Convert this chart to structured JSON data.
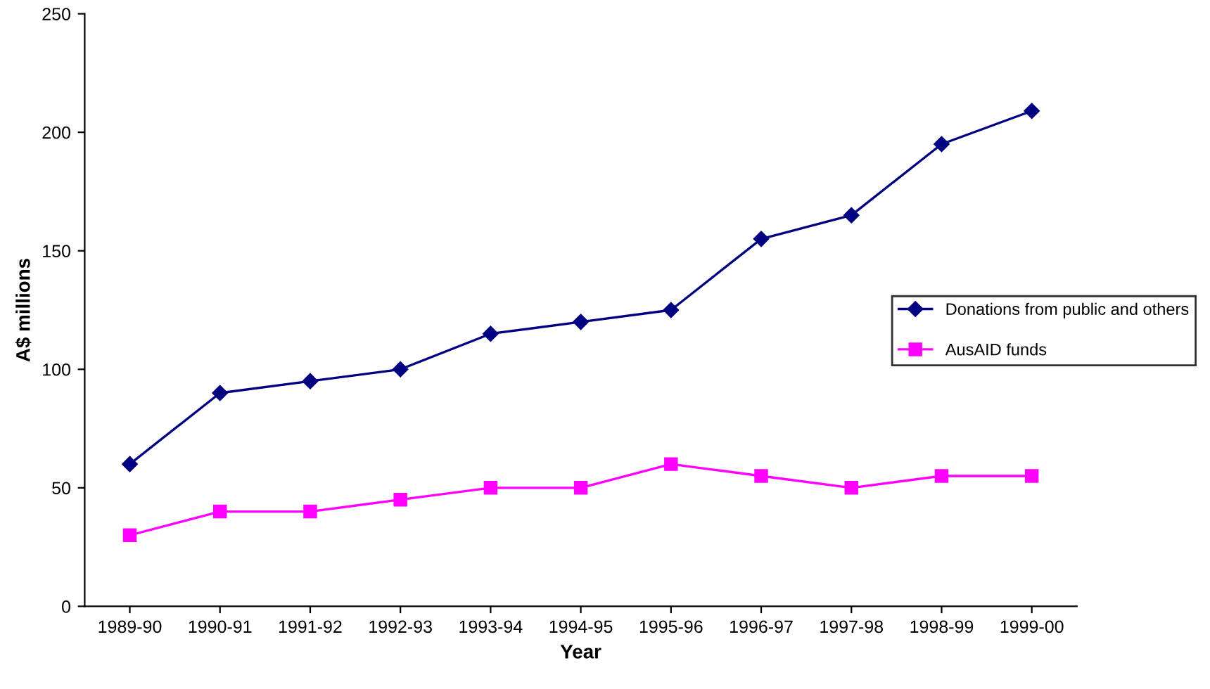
{
  "chart_data": {
    "type": "line",
    "xlabel": "Year",
    "ylabel": "A$ millions",
    "categories": [
      "1989-90",
      "1990-91",
      "1991-92",
      "1992-93",
      "1993-94",
      "1994-95",
      "1995-96",
      "1996-97",
      "1997-98",
      "1998-99",
      "1999-00"
    ],
    "series": [
      {
        "name": "Donations from public and others",
        "color": "#000080",
        "marker": "diamond",
        "values": [
          60,
          90,
          95,
          100,
          115,
          120,
          125,
          155,
          165,
          195,
          209
        ]
      },
      {
        "name": "AusAID funds",
        "color": "#ff00ff",
        "marker": "square",
        "values": [
          30,
          40,
          40,
          45,
          50,
          50,
          60,
          55,
          50,
          55,
          55
        ]
      }
    ],
    "ylim": [
      0,
      250
    ],
    "yticks": [
      0,
      50,
      100,
      150,
      200,
      250
    ],
    "grid": false,
    "legend": "right",
    "line_style": "solid"
  }
}
